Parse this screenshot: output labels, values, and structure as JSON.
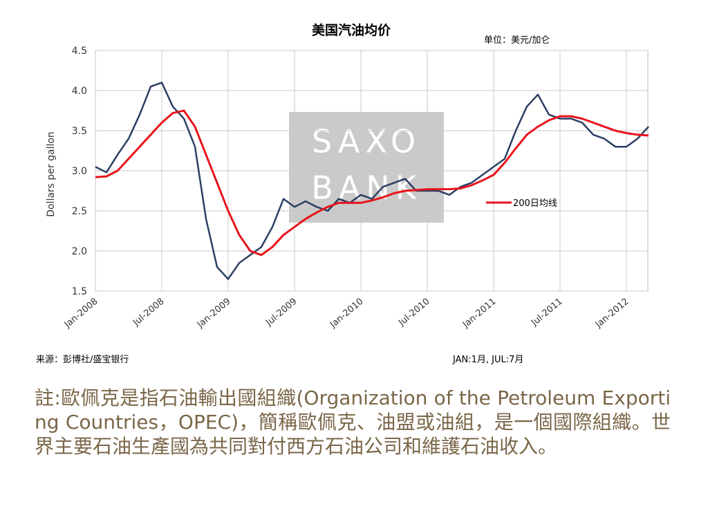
{
  "chart_data": {
    "type": "line",
    "title": "美国汽油均价",
    "unit": "单位：美元/加仑",
    "y_label": "Dollars per gallon",
    "source": "来源：彭博社/盛宝银行",
    "note": "JAN:1月, JUL:7月",
    "watermark": [
      "SAXO",
      "BANK"
    ],
    "x": [
      "Jan-2008",
      "Feb-2008",
      "Mar-2008",
      "Apr-2008",
      "May-2008",
      "Jun-2008",
      "Jul-2008",
      "Aug-2008",
      "Sep-2008",
      "Oct-2008",
      "Nov-2008",
      "Dec-2008",
      "Jan-2009",
      "Feb-2009",
      "Mar-2009",
      "Apr-2009",
      "May-2009",
      "Jun-2009",
      "Jul-2009",
      "Aug-2009",
      "Sep-2009",
      "Oct-2009",
      "Nov-2009",
      "Dec-2009",
      "Jan-2010",
      "Feb-2010",
      "Mar-2010",
      "Apr-2010",
      "May-2010",
      "Jun-2010",
      "Jul-2010",
      "Aug-2010",
      "Sep-2010",
      "Oct-2010",
      "Nov-2010",
      "Dec-2010",
      "Jan-2011",
      "Feb-2011",
      "Mar-2011",
      "Apr-2011",
      "May-2011",
      "Jun-2011",
      "Jul-2011",
      "Aug-2011",
      "Sep-2011",
      "Oct-2011",
      "Nov-2011",
      "Dec-2011",
      "Jan-2012",
      "Feb-2012",
      "Mar-2012"
    ],
    "xticks": [
      "Jan-2008",
      "Jul-2008",
      "Jan-2009",
      "Jul-2009",
      "Jan-2010",
      "Jul-2010",
      "Jan-2011",
      "Jul-2011",
      "Jan-2012"
    ],
    "series": [
      {
        "color": "#2b3f63",
        "values": [
          3.05,
          2.98,
          3.2,
          3.4,
          3.7,
          4.05,
          4.1,
          3.8,
          3.65,
          3.3,
          2.4,
          1.8,
          1.65,
          1.85,
          1.95,
          2.05,
          2.3,
          2.65,
          2.55,
          2.62,
          2.55,
          2.5,
          2.65,
          2.6,
          2.7,
          2.65,
          2.8,
          2.85,
          2.9,
          2.75,
          2.75,
          2.75,
          2.7,
          2.8,
          2.85,
          2.95,
          3.05,
          3.15,
          3.5,
          3.8,
          3.95,
          3.7,
          3.65,
          3.65,
          3.6,
          3.45,
          3.4,
          3.3,
          3.3,
          3.4,
          3.55
        ]
      },
      {
        "name": "200日均线",
        "color": "#e8141b",
        "values": [
          2.92,
          2.93,
          3.0,
          3.15,
          3.3,
          3.45,
          3.6,
          3.72,
          3.75,
          3.55,
          3.2,
          2.85,
          2.5,
          2.2,
          2.0,
          1.95,
          2.05,
          2.2,
          2.3,
          2.4,
          2.48,
          2.55,
          2.6,
          2.6,
          2.6,
          2.63,
          2.67,
          2.72,
          2.75,
          2.76,
          2.77,
          2.77,
          2.77,
          2.78,
          2.82,
          2.88,
          2.95,
          3.1,
          3.28,
          3.45,
          3.55,
          3.63,
          3.68,
          3.68,
          3.65,
          3.6,
          3.55,
          3.5,
          3.47,
          3.45,
          3.44
        ]
      }
    ],
    "ylim": [
      1.5,
      4.5
    ],
    "yticks": [
      {
        "value": 1.5,
        "label": "1.5"
      },
      {
        "value": 2,
        "label": "2.0"
      },
      {
        "value": 2.5,
        "label": "2.5"
      },
      {
        "value": 3,
        "label": "3.0"
      },
      {
        "value": 3.5,
        "label": "3.5"
      },
      {
        "value": 4,
        "label": "4.0"
      },
      {
        "value": 4.5,
        "label": "4.5"
      }
    ],
    "grid": true
  },
  "paragraph": "註:歐佩克是指石油輸出國組織(Organization of the Petroleum Exporting Countries，OPEC)，簡稱歐佩克、油盟或油組，是一個國際組織。世界主要石油生產國為共同對付西方石油公司和維護石油收入。"
}
